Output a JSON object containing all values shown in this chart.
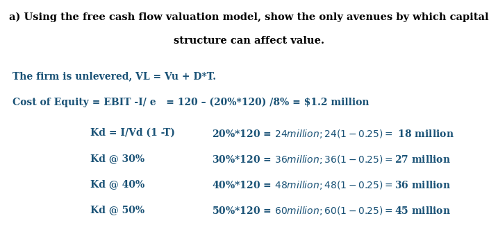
{
  "background_color": "#ffffff",
  "title_line1": "a) Using the free cash flow valuation model, show the only avenues by which capital",
  "title_line2": "structure can affect value.",
  "title_color": "#000000",
  "title_fontsize": 10.5,
  "line1_text": "The firm is unlevered, VL = Vu + D*T.",
  "line1_color": "#1a5276",
  "line1_fontsize": 10,
  "line2_text": "Cost of Equity = EBIT -I/ e   = 120 – (20%*120) /8% = $1.2 million",
  "line2_color": "#1a5276",
  "line2_fontsize": 10,
  "rows": [
    {
      "label": "Kd = I/Vd (1 -T)",
      "value": "20%*120 = $24 million;  24(1-0.25) =$ 18 million"
    },
    {
      "label": "Kd @ 30%",
      "value": "30%*120 = $36 million;  36(1-0.25) = $27 million"
    },
    {
      "label": "Kd @ 40%",
      "value": "40%*120 = $48 million;  48(1-0.25) = $36 million"
    },
    {
      "label": "Kd @ 50%",
      "value": "50%*120 = $60 million;  60(1-0.25) = $45 million"
    }
  ],
  "row_label_color": "#1a5276",
  "row_value_color": "#1a5276",
  "row_fontsize": 10,
  "figwidth": 7.17,
  "figheight": 3.51,
  "dpi": 100
}
